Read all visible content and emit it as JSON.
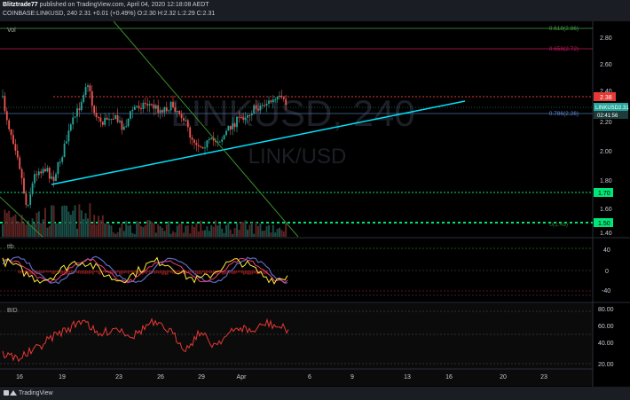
{
  "header": {
    "line1_author": "Blitztrade77",
    "line1_rest": " published on TradingView.com, April 04, 2020 12:18:08 AEDT",
    "line2": "COINBASE:LINKUSD, 240  2.31  +0.01 (+0.49%)  O:2.30  H:2.32  L:2.29  C:2.31"
  },
  "watermark": {
    "symbol": "LINKUSD, 240",
    "pair": "LINK/USD"
  },
  "panes": {
    "main_label": "Vol",
    "osc_label": "ttb",
    "bid_label": "BID"
  },
  "price_axis": {
    "ticks": [
      "2.80",
      "2.60",
      "2.40",
      "2.20",
      "2.00",
      "1.80",
      "1.60",
      "1.40"
    ],
    "osc_ticks": [
      "40",
      "0",
      "-40"
    ],
    "bid_ticks": [
      "80.00",
      "60.00",
      "40.00",
      "20.00"
    ]
  },
  "levels": {
    "fib618": "0.618(2.86)",
    "fib658": "0.658(2.72)",
    "fib786": "0.786(2.26)",
    "fib_low": "0(1.49)",
    "red_tag": "2.38",
    "symbol_tag": "LINKUSD",
    "symbol_price": "2.31",
    "countdown": "02:41:56",
    "green1": "1.70",
    "green2": "1.50"
  },
  "time_axis": [
    "16",
    "19",
    "23",
    "26",
    "29",
    "Apr",
    "6",
    "9",
    "13",
    "16",
    "20",
    "23"
  ],
  "footer": {
    "brand": "TradingView",
    "logo_icon": "tradingview-logo-icon"
  },
  "colors": {
    "up": "#26a69a",
    "down": "#ef5350",
    "trend": "#00e5ff",
    "diag": "#3b8f2a",
    "red_level": "#e53935",
    "green_level": "#00e676",
    "fib_pink": "#c2185b",
    "fib_green": "#43a047",
    "fib_blue": "#4a6fa5"
  }
}
